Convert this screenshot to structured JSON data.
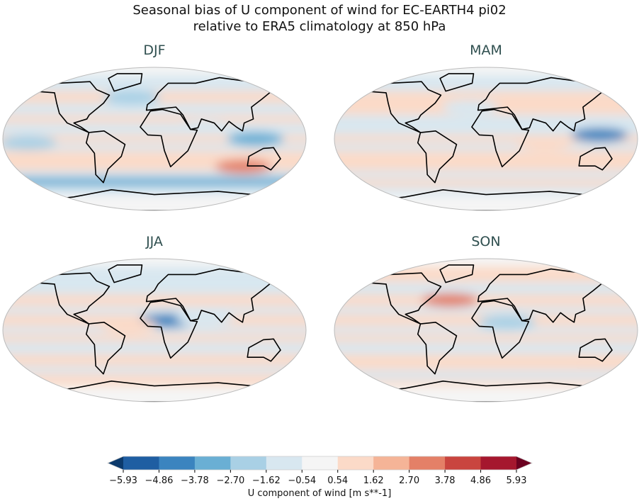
{
  "chart_data": {
    "type": "heatmap",
    "title_line1": "Seasonal bias of U component of wind for EC-EARTH4 pi02",
    "title_line2": "relative to ERA5 climatology at 850 hPa",
    "colorbar": {
      "label": "U component of wind [m s**-1]",
      "ticks": [
        "-5.93",
        "-4.86",
        "-3.78",
        "-2.70",
        "-1.62",
        "-0.54",
        "0.54",
        "1.62",
        "2.70",
        "3.78",
        "4.86",
        "5.93"
      ],
      "levels": [
        -5.93,
        -4.86,
        -3.78,
        -2.7,
        -1.62,
        -0.54,
        0.54,
        1.62,
        2.7,
        3.78,
        4.86,
        5.93
      ],
      "colors": [
        "#1f5ea2",
        "#3b84bf",
        "#6aafd4",
        "#a9d0e5",
        "#d8e7f0",
        "#f5f5f5",
        "#fbdac8",
        "#f5b497",
        "#e48067",
        "#c9453f",
        "#a5172e"
      ],
      "extend_colors": [
        "#0c3a6c",
        "#6b0120"
      ]
    },
    "panels": [
      {
        "season": "DJF",
        "bands": [
          [
            60,
            80,
            -1
          ],
          [
            45,
            60,
            1
          ],
          [
            30,
            45,
            -1
          ],
          [
            20,
            30,
            1
          ],
          [
            5,
            20,
            -1
          ],
          [
            -5,
            5,
            1
          ],
          [
            -15,
            -5,
            -1.5
          ],
          [
            -30,
            -15,
            1
          ],
          [
            -40,
            -30,
            1.5
          ],
          [
            -48,
            -40,
            -1.5
          ],
          [
            -60,
            -48,
            -3
          ],
          [
            -70,
            -60,
            -1
          ]
        ],
        "blobs": [
          [
            110,
            -35,
            3.5
          ],
          [
            120,
            0,
            -3
          ],
          [
            -150,
            -5,
            -2
          ],
          [
            60,
            15,
            -1
          ],
          [
            -30,
            52,
            -2
          ]
        ]
      },
      {
        "season": "MAM",
        "bands": [
          [
            60,
            80,
            -1
          ],
          [
            45,
            60,
            1
          ],
          [
            30,
            45,
            1.5
          ],
          [
            20,
            30,
            -1
          ],
          [
            5,
            20,
            -1
          ],
          [
            -5,
            5,
            1
          ],
          [
            -15,
            -5,
            -1
          ],
          [
            -30,
            -15,
            1
          ],
          [
            -40,
            -30,
            1
          ],
          [
            -50,
            -40,
            -1.5
          ],
          [
            -60,
            -50,
            1
          ],
          [
            -70,
            -60,
            -1
          ]
        ],
        "blobs": [
          [
            135,
            5,
            -4
          ],
          [
            70,
            -5,
            1.5
          ],
          [
            -20,
            40,
            -1.5
          ]
        ]
      },
      {
        "season": "JJA",
        "bands": [
          [
            60,
            80,
            -1
          ],
          [
            45,
            60,
            -1
          ],
          [
            30,
            45,
            1
          ],
          [
            20,
            30,
            -1
          ],
          [
            5,
            20,
            1
          ],
          [
            -5,
            5,
            -1
          ],
          [
            -15,
            -5,
            1
          ],
          [
            -30,
            -15,
            -1
          ],
          [
            -45,
            -30,
            1
          ],
          [
            -55,
            -45,
            -1
          ],
          [
            -70,
            -55,
            1
          ]
        ],
        "blobs": [
          [
            15,
            12,
            -4
          ],
          [
            60,
            15,
            -1.5
          ],
          [
            -30,
            5,
            1.5
          ]
        ]
      },
      {
        "season": "SON",
        "bands": [
          [
            60,
            80,
            1
          ],
          [
            45,
            60,
            -1
          ],
          [
            30,
            45,
            1
          ],
          [
            20,
            30,
            -1
          ],
          [
            5,
            20,
            1
          ],
          [
            -5,
            5,
            -1
          ],
          [
            -15,
            -5,
            1
          ],
          [
            -30,
            -15,
            -1
          ],
          [
            -40,
            -30,
            1
          ],
          [
            -50,
            -40,
            1.5
          ],
          [
            -62,
            -50,
            -1
          ],
          [
            -70,
            -62,
            1
          ]
        ],
        "blobs": [
          [
            -45,
            38,
            3
          ],
          [
            25,
            10,
            -2.5
          ],
          [
            150,
            -40,
            1.5
          ]
        ]
      }
    ]
  }
}
